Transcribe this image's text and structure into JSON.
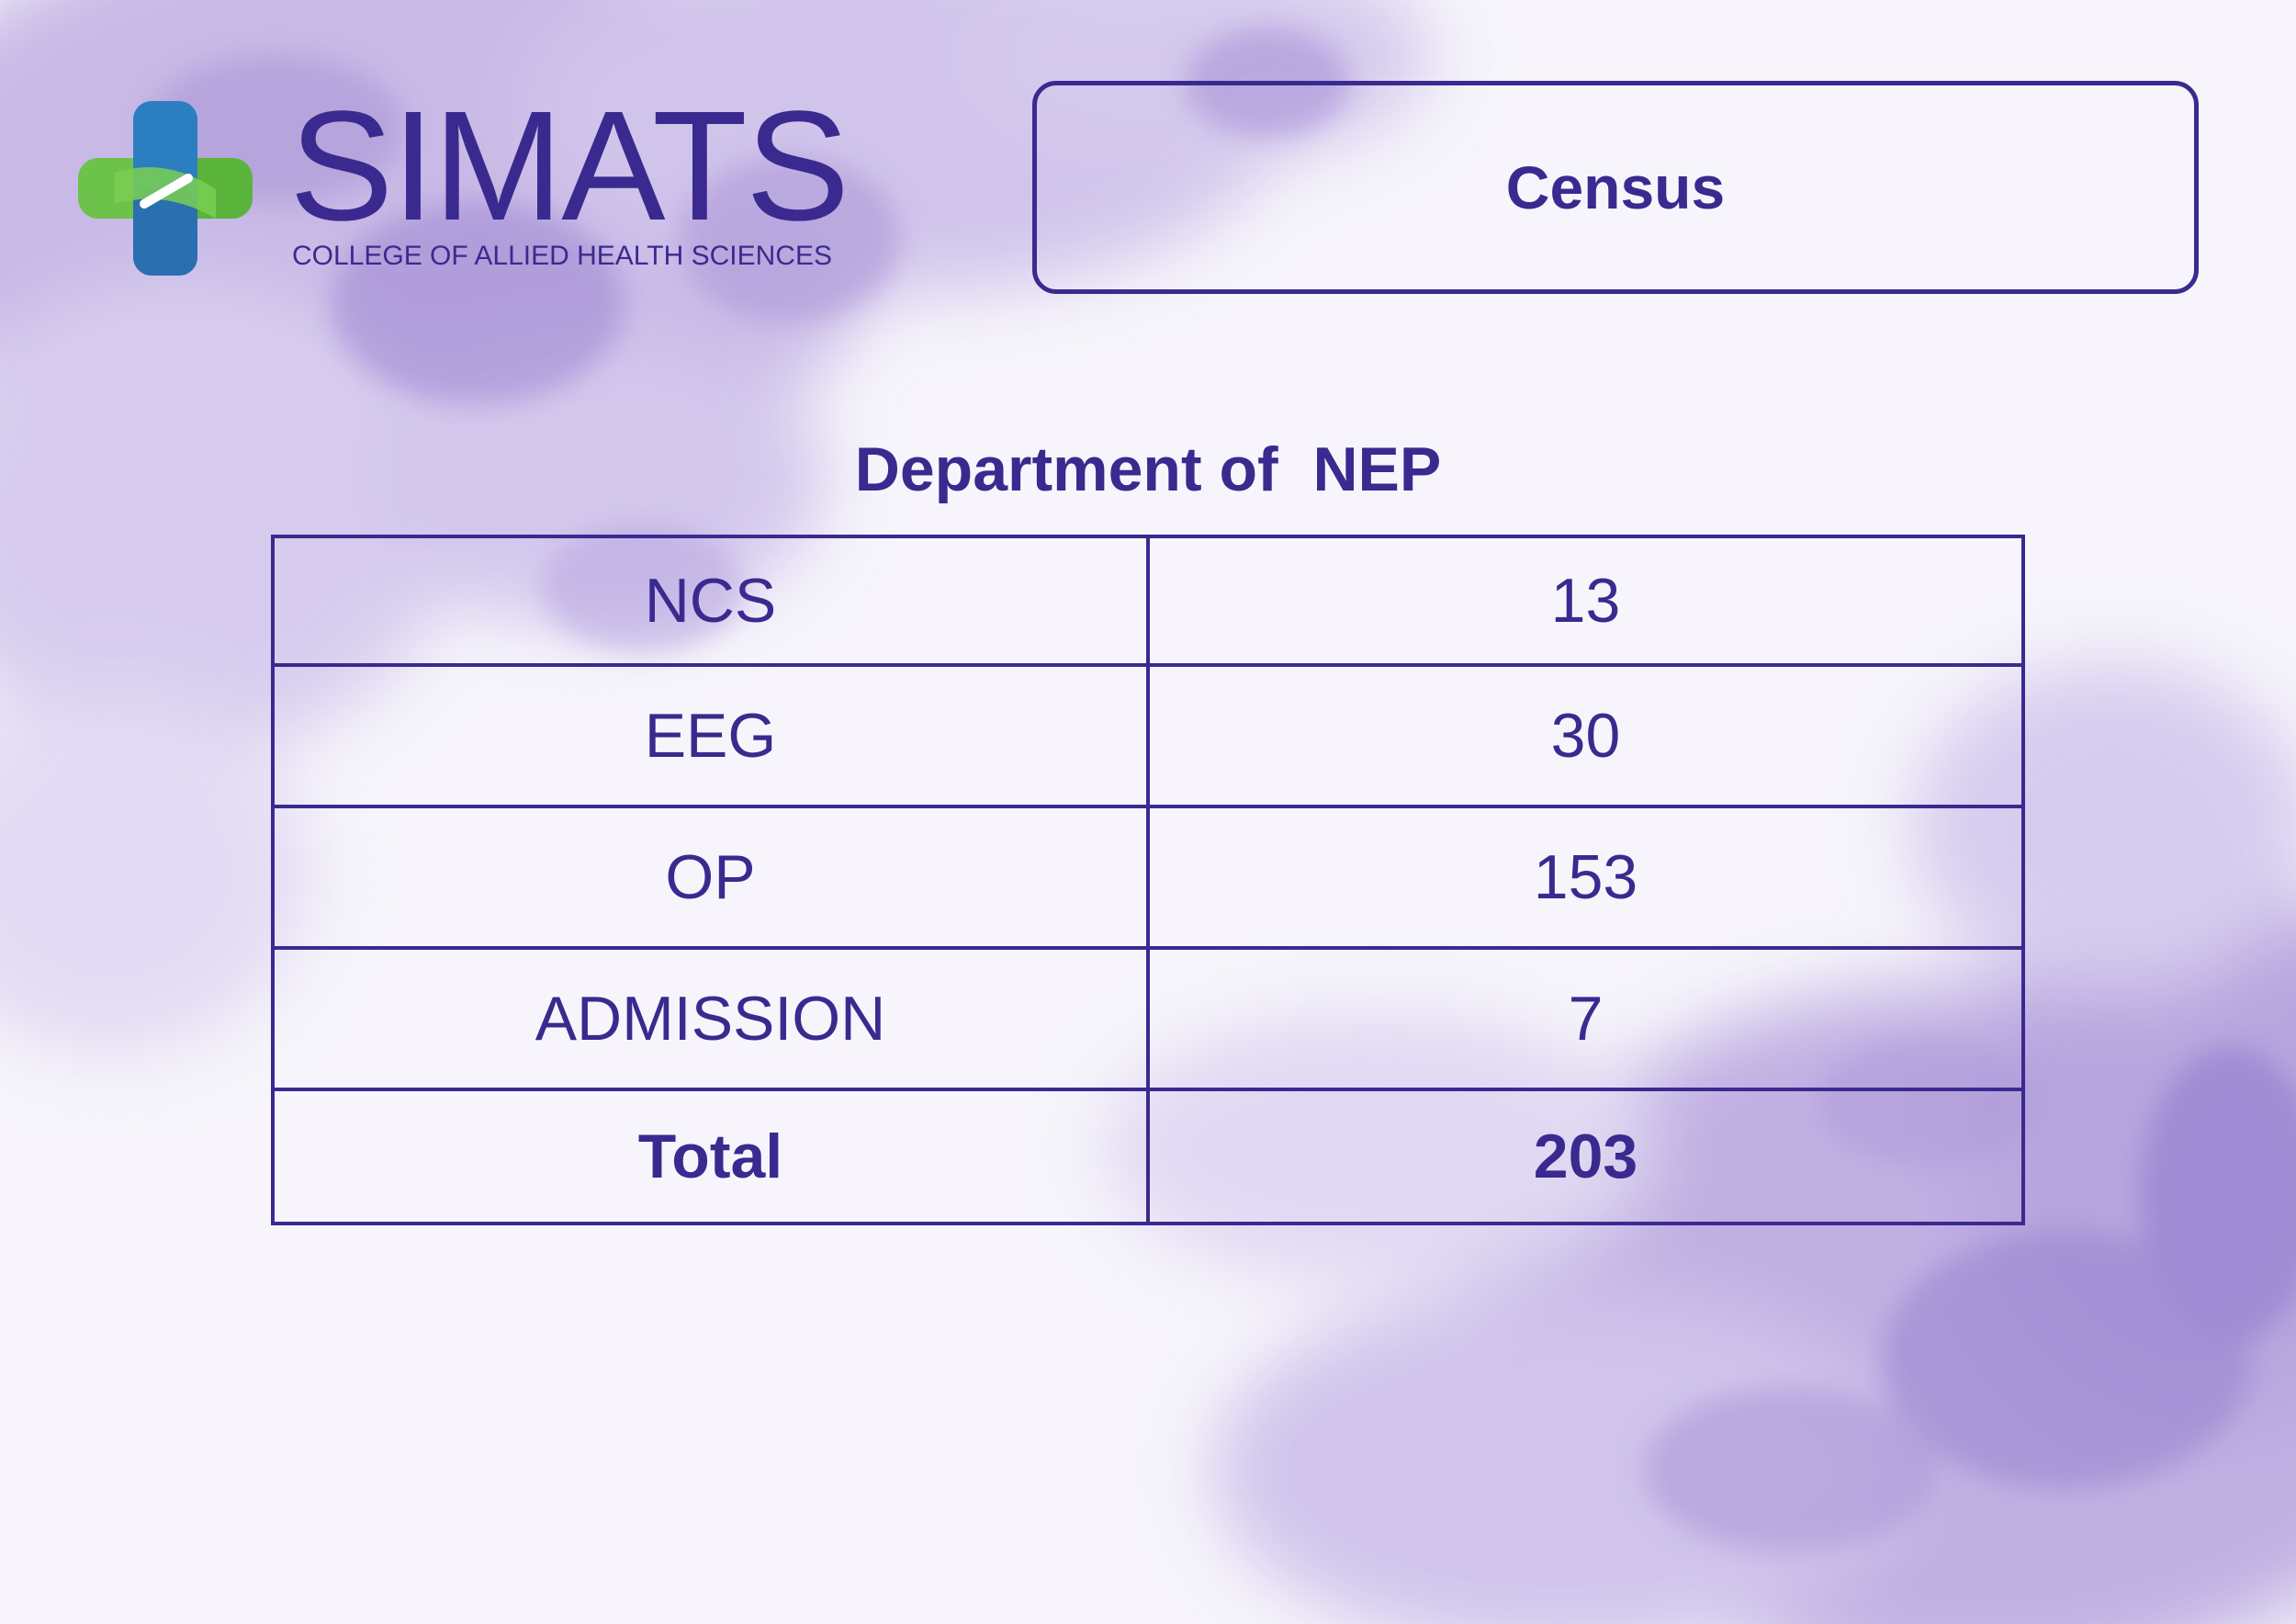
{
  "logo": {
    "wordmark": "SIMATS",
    "subtitle": "COLLEGE OF ALLIED HEALTH SCIENCES",
    "mark_icon": "green-blue-cross-icon",
    "colors": {
      "green": "#6cc24a",
      "blue": "#2b7fc1",
      "text": "#3a2a8f"
    }
  },
  "title": "Census",
  "department": "Department of  NEP",
  "table": {
    "rows": [
      {
        "label": "NCS",
        "value": "13"
      },
      {
        "label": "EEG",
        "value": "30"
      },
      {
        "label": "OP",
        "value": "153"
      },
      {
        "label": "ADMISSION",
        "value": "7"
      }
    ],
    "total": {
      "label": "Total",
      "value": "203"
    }
  },
  "colors": {
    "accent": "#3a2a8f",
    "background": "#f7f5fb",
    "watercolor": "#a995d6"
  }
}
